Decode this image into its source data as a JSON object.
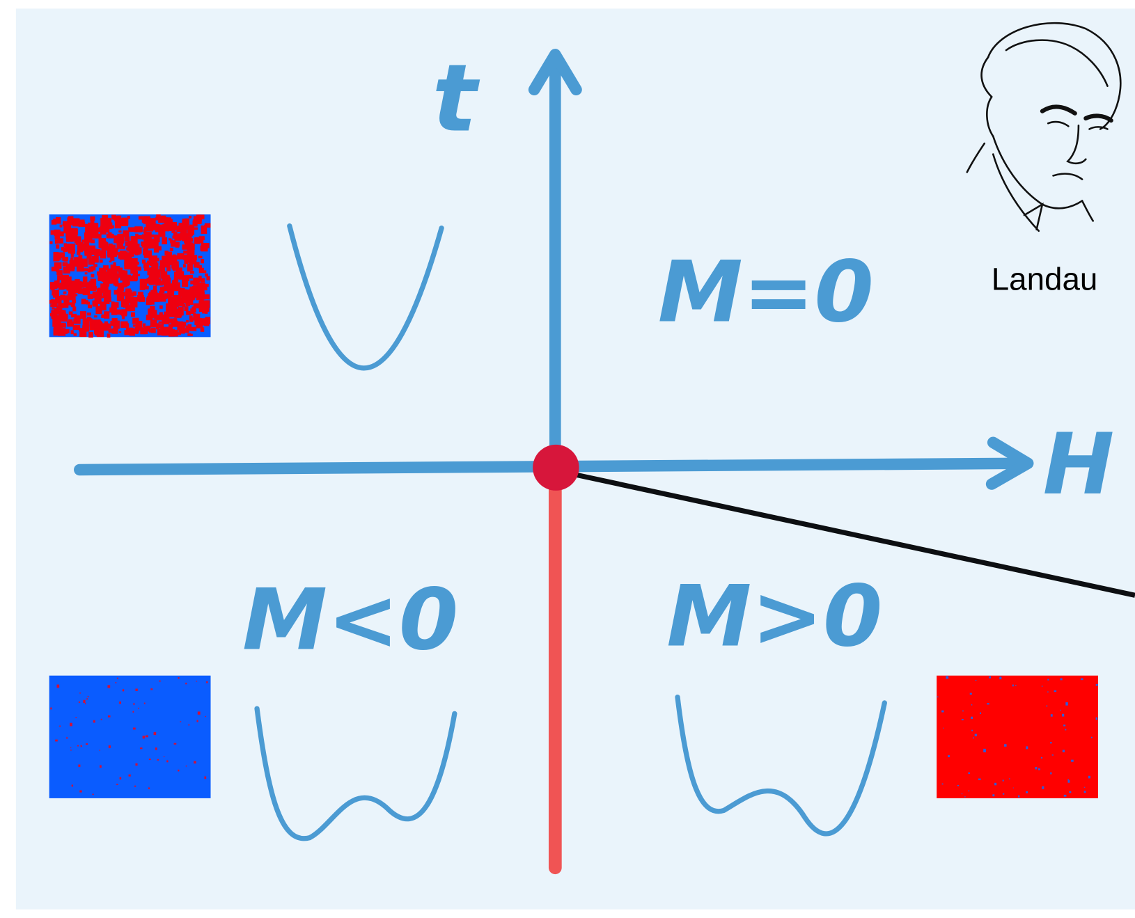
{
  "axes": {
    "vertical_label": "t",
    "horizontal_label": "H"
  },
  "regions": {
    "disordered": "M=0",
    "negative": "M<0",
    "positive": "M>0"
  },
  "portrait": {
    "caption": "Landau"
  }
}
